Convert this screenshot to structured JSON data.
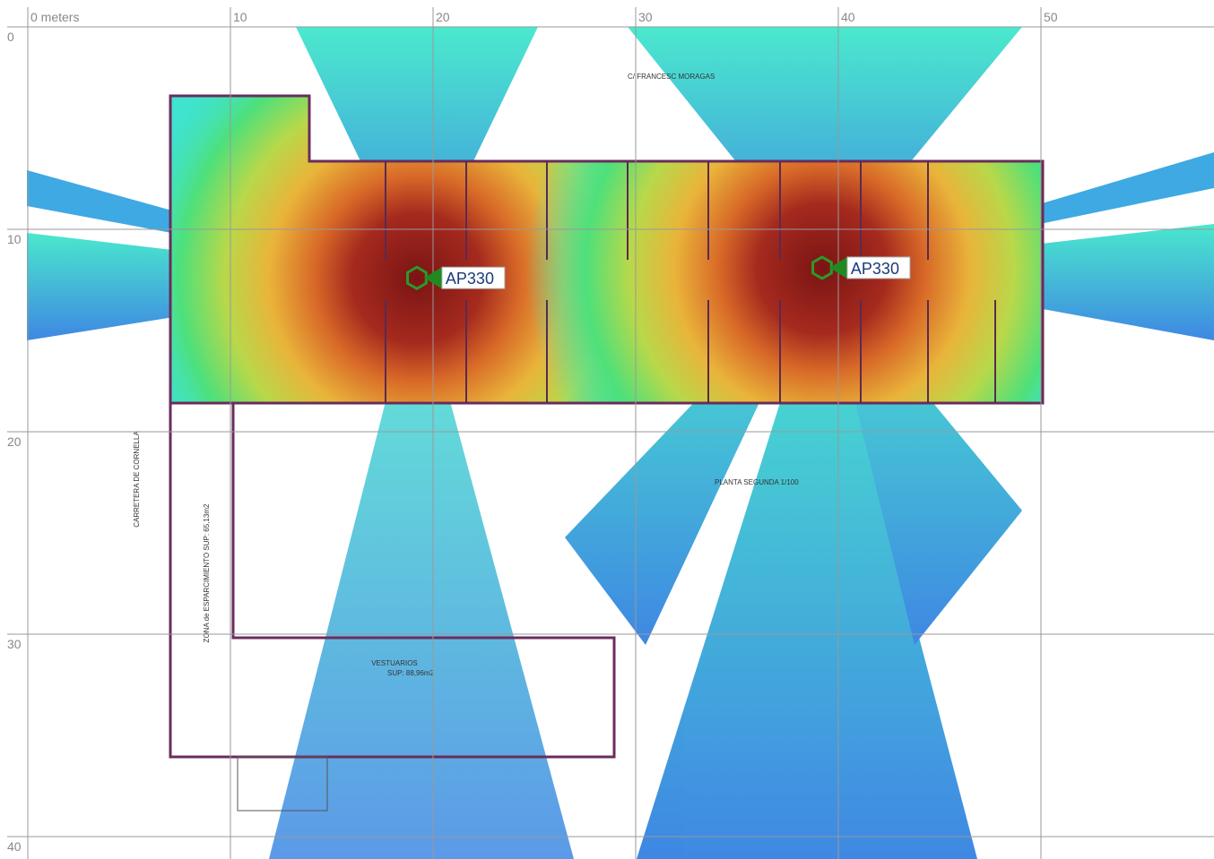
{
  "grid": {
    "x_ticks": [
      {
        "value": 0,
        "label": "0 meters"
      },
      10,
      20,
      30,
      40,
      50
    ],
    "y_ticks": [
      0,
      10,
      20,
      30,
      40
    ]
  },
  "access_points": [
    {
      "label": "AP330",
      "x": 19.2,
      "y": 12.4
    },
    {
      "label": "AP330",
      "x": 39.2,
      "y": 11.9
    }
  ],
  "plan_labels": {
    "street": "C/ FRANCESC MORAGAS",
    "floor": "PLANTA SEGUNDA 1/100",
    "road": "CARRETERA DE CORNELLA",
    "room": "VESTUARIOS",
    "room_area": "SUP: 88,96m2",
    "zone": "ZONA de ESPARCIMIENTO SUP: 65,13m2"
  }
}
